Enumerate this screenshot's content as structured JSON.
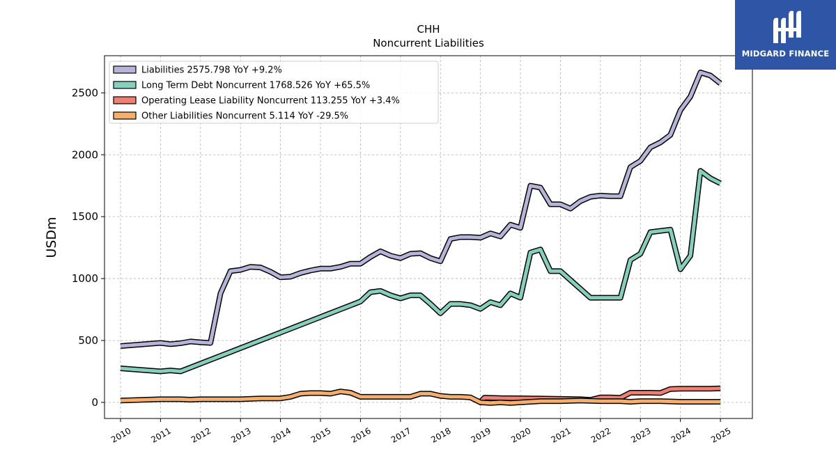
{
  "chart_data": {
    "type": "line",
    "title": "CHH",
    "subtitle": "Noncurrent  Liabilities",
    "ylabel": "USDm",
    "xlabel": "",
    "xlim": [
      2009.6,
      2025.8
    ],
    "ylim": [
      -130,
      2800
    ],
    "x_ticks": [
      "2010",
      "2011",
      "2012",
      "2013",
      "2014",
      "2015",
      "2016",
      "2017",
      "2018",
      "2019",
      "2020",
      "2021",
      "2022",
      "2023",
      "2024",
      "2025"
    ],
    "y_ticks": [
      "0",
      "500",
      "1000",
      "1500",
      "2000",
      "2500"
    ],
    "grid": true,
    "legend_position": "top-left",
    "series": [
      {
        "name": "Liabilities",
        "legend_label": "Liabilities  2575.798 YoY +9.2%",
        "color": "#b7b4d9",
        "points": [
          [
            2010.0,
            455
          ],
          [
            2011.0,
            480
          ],
          [
            2011.25,
            470
          ],
          [
            2011.5,
            478
          ],
          [
            2011.75,
            492
          ],
          [
            2012.0,
            485
          ],
          [
            2012.25,
            480
          ],
          [
            2012.5,
            880
          ],
          [
            2012.75,
            1060
          ],
          [
            2013.0,
            1070
          ],
          [
            2013.25,
            1095
          ],
          [
            2013.5,
            1090
          ],
          [
            2013.75,
            1055
          ],
          [
            2014.0,
            1010
          ],
          [
            2014.25,
            1015
          ],
          [
            2014.5,
            1045
          ],
          [
            2014.75,
            1065
          ],
          [
            2015.0,
            1080
          ],
          [
            2015.25,
            1080
          ],
          [
            2015.5,
            1095
          ],
          [
            2015.75,
            1120
          ],
          [
            2016.0,
            1120
          ],
          [
            2016.25,
            1175
          ],
          [
            2016.5,
            1220
          ],
          [
            2016.75,
            1185
          ],
          [
            2017.0,
            1165
          ],
          [
            2017.25,
            1200
          ],
          [
            2017.5,
            1205
          ],
          [
            2017.75,
            1165
          ],
          [
            2018.0,
            1140
          ],
          [
            2018.25,
            1320
          ],
          [
            2018.5,
            1335
          ],
          [
            2018.75,
            1335
          ],
          [
            2019.0,
            1330
          ],
          [
            2019.25,
            1365
          ],
          [
            2019.5,
            1340
          ],
          [
            2019.75,
            1435
          ],
          [
            2020.0,
            1410
          ],
          [
            2020.25,
            1750
          ],
          [
            2020.5,
            1735
          ],
          [
            2020.75,
            1600
          ],
          [
            2021.0,
            1600
          ],
          [
            2021.25,
            1565
          ],
          [
            2021.5,
            1625
          ],
          [
            2021.75,
            1660
          ],
          [
            2022.0,
            1670
          ],
          [
            2022.25,
            1665
          ],
          [
            2022.5,
            1665
          ],
          [
            2022.75,
            1900
          ],
          [
            2023.0,
            1950
          ],
          [
            2023.25,
            2060
          ],
          [
            2023.5,
            2100
          ],
          [
            2023.75,
            2160
          ],
          [
            2024.0,
            2360
          ],
          [
            2024.25,
            2470
          ],
          [
            2024.5,
            2665
          ],
          [
            2024.75,
            2640
          ],
          [
            2025.0,
            2576
          ]
        ]
      },
      {
        "name": "Long Term Debt Noncurrent",
        "legend_label": "Long Term Debt Noncurrent  1768.526 YoY +65.5%",
        "color": "#86cfbd",
        "points": [
          [
            2010.0,
            275
          ],
          [
            2011.0,
            250
          ],
          [
            2011.25,
            258
          ],
          [
            2011.5,
            250
          ],
          [
            2016.0,
            815
          ],
          [
            2016.25,
            890
          ],
          [
            2016.5,
            900
          ],
          [
            2016.75,
            865
          ],
          [
            2017.0,
            840
          ],
          [
            2017.25,
            865
          ],
          [
            2017.5,
            865
          ],
          [
            2017.75,
            795
          ],
          [
            2018.0,
            720
          ],
          [
            2018.25,
            795
          ],
          [
            2018.5,
            795
          ],
          [
            2018.75,
            785
          ],
          [
            2019.0,
            755
          ],
          [
            2019.25,
            810
          ],
          [
            2019.5,
            785
          ],
          [
            2019.75,
            880
          ],
          [
            2020.0,
            845
          ],
          [
            2020.25,
            1210
          ],
          [
            2020.5,
            1235
          ],
          [
            2020.75,
            1060
          ],
          [
            2021.0,
            1060
          ],
          [
            2021.75,
            845
          ],
          [
            2022.0,
            845
          ],
          [
            2022.5,
            845
          ],
          [
            2022.75,
            1150
          ],
          [
            2023.0,
            1200
          ],
          [
            2023.25,
            1375
          ],
          [
            2023.5,
            1385
          ],
          [
            2023.75,
            1395
          ],
          [
            2024.0,
            1075
          ],
          [
            2024.25,
            1185
          ],
          [
            2024.5,
            1870
          ],
          [
            2024.75,
            1810
          ],
          [
            2025.0,
            1769
          ]
        ]
      },
      {
        "name": "Operating Lease Liability Noncurrent",
        "legend_label": "Operating Lease Liability Noncurrent  113.255 YoY +3.4%",
        "color": "#f07f73",
        "points": [
          [
            2018.95,
            -12
          ],
          [
            2019.1,
            38
          ],
          [
            2019.5,
            34
          ],
          [
            2020.0,
            33
          ],
          [
            2020.5,
            31
          ],
          [
            2021.0,
            28
          ],
          [
            2021.5,
            25
          ],
          [
            2021.75,
            20
          ],
          [
            2022.0,
            40
          ],
          [
            2022.25,
            40
          ],
          [
            2022.5,
            37
          ],
          [
            2022.75,
            78
          ],
          [
            2023.0,
            78
          ],
          [
            2023.25,
            78
          ],
          [
            2023.5,
            76
          ],
          [
            2023.75,
            108
          ],
          [
            2024.0,
            110
          ],
          [
            2024.25,
            110
          ],
          [
            2024.5,
            110
          ],
          [
            2024.75,
            110
          ],
          [
            2025.0,
            113
          ]
        ]
      },
      {
        "name": "Other Liabilities Noncurrent",
        "legend_label": "Other Liabilities Noncurrent  5.114 YoY -29.5%",
        "color": "#f5ae6b",
        "points": [
          [
            2010.0,
            15
          ],
          [
            2011.0,
            25
          ],
          [
            2011.5,
            25
          ],
          [
            2011.75,
            22
          ],
          [
            2012.0,
            25
          ],
          [
            2013.0,
            25
          ],
          [
            2013.5,
            32
          ],
          [
            2014.0,
            32
          ],
          [
            2014.25,
            45
          ],
          [
            2014.5,
            70
          ],
          [
            2014.75,
            75
          ],
          [
            2015.0,
            75
          ],
          [
            2015.25,
            70
          ],
          [
            2015.5,
            88
          ],
          [
            2015.75,
            78
          ],
          [
            2016.0,
            45
          ],
          [
            2016.5,
            45
          ],
          [
            2017.0,
            45
          ],
          [
            2017.25,
            45
          ],
          [
            2017.5,
            70
          ],
          [
            2017.75,
            70
          ],
          [
            2018.0,
            52
          ],
          [
            2018.25,
            45
          ],
          [
            2018.5,
            45
          ],
          [
            2018.75,
            40
          ],
          [
            2019.0,
            0
          ],
          [
            2019.25,
            -5
          ],
          [
            2019.5,
            0
          ],
          [
            2019.75,
            -5
          ],
          [
            2020.0,
            0
          ],
          [
            2020.5,
            10
          ],
          [
            2021.0,
            10
          ],
          [
            2021.5,
            15
          ],
          [
            2022.0,
            10
          ],
          [
            2022.5,
            10
          ],
          [
            2022.75,
            5
          ],
          [
            2023.0,
            10
          ],
          [
            2023.5,
            10
          ],
          [
            2024.0,
            5
          ],
          [
            2024.5,
            5
          ],
          [
            2025.0,
            5
          ]
        ]
      }
    ]
  },
  "logo": {
    "text": "MIDGARD FINANCE",
    "color": "#2f56a6"
  }
}
